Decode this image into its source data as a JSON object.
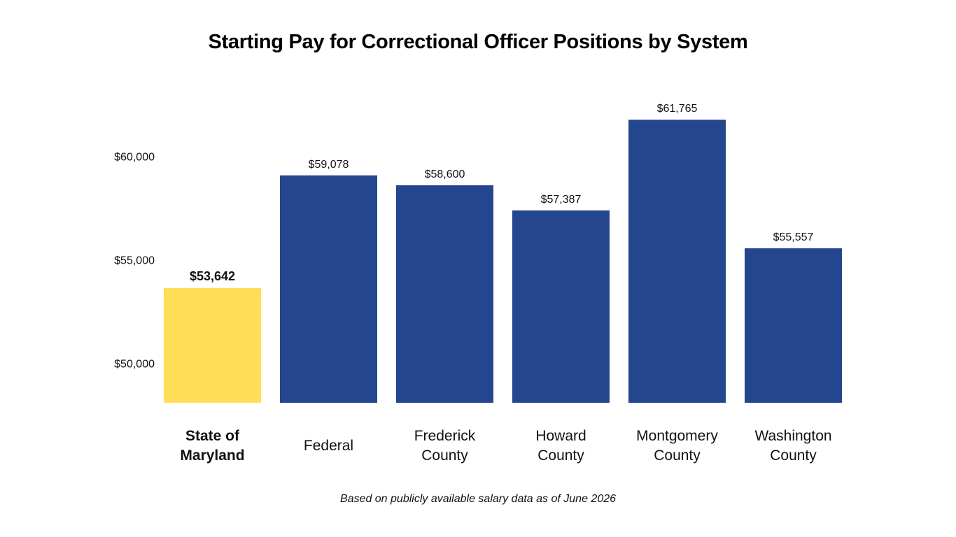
{
  "chart_data": {
    "type": "bar",
    "title": "Starting Pay for Correctional Officer Positions by System",
    "xlabel": "",
    "ylabel": "",
    "categories": [
      [
        "State of",
        "Maryland"
      ],
      [
        "Federal"
      ],
      [
        "Frederick",
        "County"
      ],
      [
        "Howard",
        "County"
      ],
      [
        "Montgomery",
        "County"
      ],
      [
        "Washington",
        "County"
      ]
    ],
    "values": [
      53642,
      59078,
      58600,
      57387,
      61765,
      55557
    ],
    "value_labels": [
      "$53,642",
      "$59,078",
      "$58,600",
      "$57,387",
      "$61,765",
      "$55,557"
    ],
    "highlight_index": 0,
    "colors": {
      "highlight": "#FFDD57",
      "default": "#24468E"
    },
    "yticks": [
      50000,
      55000,
      60000
    ],
    "ytick_labels": [
      "$50,000",
      "$55,000",
      "$60,000"
    ],
    "ylim": [
      48100,
      63200
    ],
    "grid": false,
    "legend": "none",
    "note": "Based on publicly available salary data as of June 2026"
  }
}
